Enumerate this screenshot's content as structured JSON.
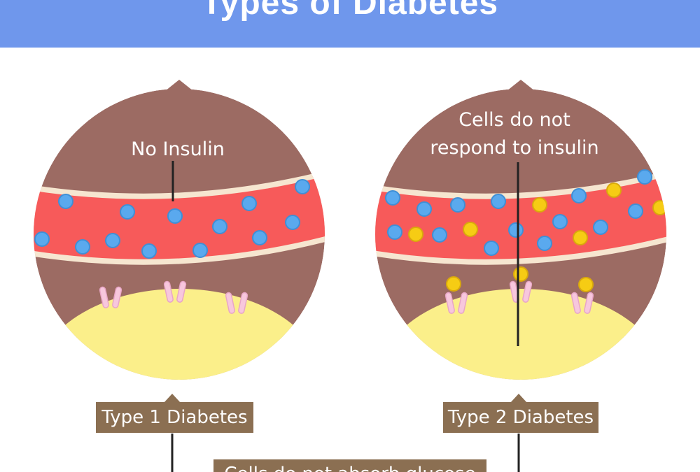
{
  "header": {
    "title": "Types of Diabetes"
  },
  "type1": {
    "callout": "No Insulin",
    "label": "Type 1 Diabetes"
  },
  "type2": {
    "callout_line1": "Cells do not",
    "callout_line2": "respond to insulin",
    "label": "Type 2 Diabetes"
  },
  "bottom_label": "Cells do not absorb glucose",
  "colors": {
    "header": "#6f97ec",
    "tissue": "#9c6b63",
    "blood_vessel": "#f75a5a",
    "vessel_wall": "#f6e6d0",
    "cell": "#fbef8a",
    "glucose": "#5aa9ee",
    "insulin": "#f6cc14",
    "receptor": "#f7c7dd",
    "label_box": "#8b6f52"
  },
  "icons": [
    "glucose-molecule-icon",
    "insulin-molecule-icon",
    "insulin-receptor-icon"
  ]
}
